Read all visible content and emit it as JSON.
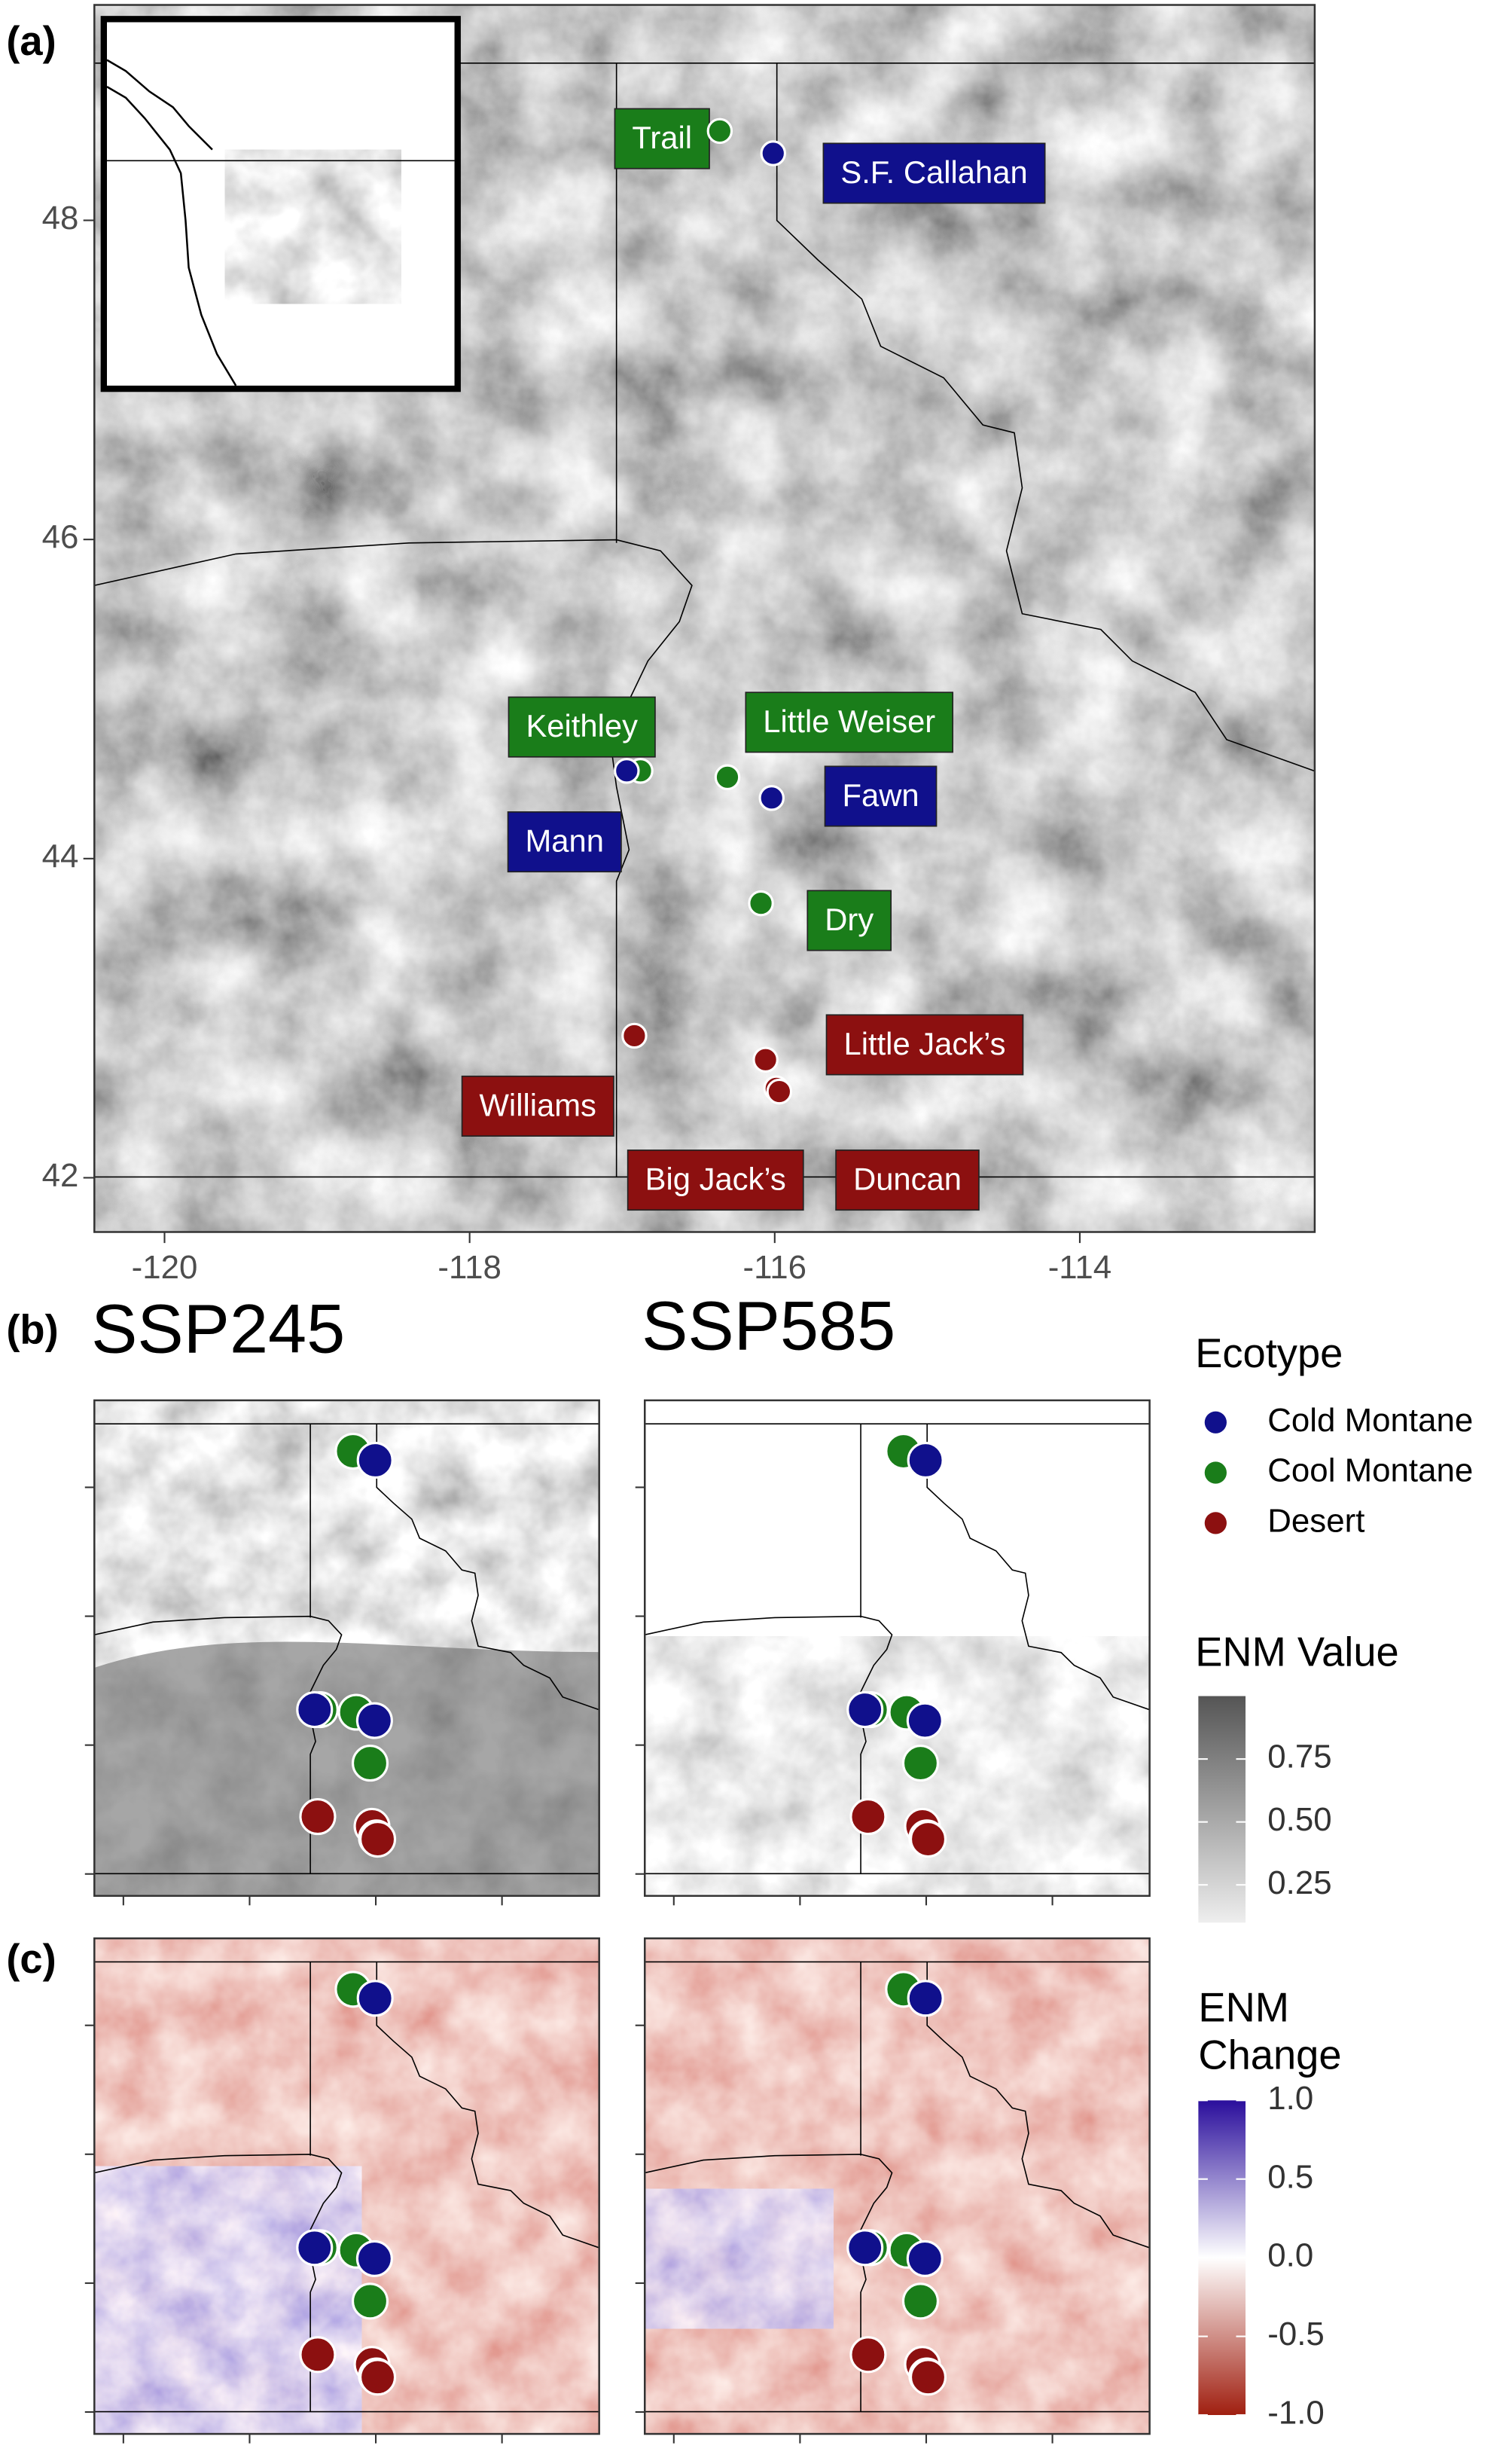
{
  "panel_labels": [
    "(a)",
    "(b)",
    "(c)"
  ],
  "map": {
    "xlim": [
      -120.46,
      -112.46
    ],
    "ylim": [
      41.66,
      49.35
    ],
    "xticks": [
      -120,
      -118,
      -116,
      -114
    ],
    "yticks": [
      42,
      44,
      46,
      48
    ]
  },
  "sites": [
    {
      "name": "Trail",
      "ecotype": "Cool Montane",
      "lon": -116.36,
      "lat": 48.56
    },
    {
      "name": "S.F. Callahan",
      "ecotype": "Cold Montane",
      "lon": -116.01,
      "lat": 48.42
    },
    {
      "name": "Keithley",
      "ecotype": "Cool Montane",
      "lon": -116.88,
      "lat": 44.55
    },
    {
      "name": "Mann",
      "ecotype": "Cold Montane",
      "lon": -116.97,
      "lat": 44.55
    },
    {
      "name": "Little Weiser",
      "ecotype": "Cool Montane",
      "lon": -116.31,
      "lat": 44.51
    },
    {
      "name": "Fawn",
      "ecotype": "Cold Montane",
      "lon": -116.02,
      "lat": 44.38
    },
    {
      "name": "Dry",
      "ecotype": "Cool Montane",
      "lon": -116.09,
      "lat": 43.72
    },
    {
      "name": "Williams",
      "ecotype": "Desert",
      "lon": -116.92,
      "lat": 42.89
    },
    {
      "name": "Little Jack’s",
      "ecotype": "Desert",
      "lon": -116.06,
      "lat": 42.74
    },
    {
      "name": "Big Jack’s",
      "ecotype": "Desert",
      "lon": -115.99,
      "lat": 42.56
    },
    {
      "name": "Duncan",
      "ecotype": "Desert",
      "lon": -115.97,
      "lat": 42.54
    }
  ],
  "scenarios": [
    "SSP245",
    "SSP585"
  ],
  "legend": {
    "title": "Ecotype",
    "items": [
      {
        "name": "Cold Montane",
        "color": "#10108c"
      },
      {
        "name": "Cool Montane",
        "color": "#1a7d1a"
      },
      {
        "name": "Desert",
        "color": "#8c1010"
      }
    ]
  },
  "enm_value": {
    "title": "ENM Value",
    "lim": [
      0.1,
      1.0
    ],
    "colors": [
      "#eeeeee",
      "#555555"
    ],
    "ticks": [
      {
        "value": 0.75,
        "label": "0.75"
      },
      {
        "value": 0.5,
        "label": "0.50"
      },
      {
        "value": 0.25,
        "label": "0.25"
      }
    ]
  },
  "enm_change": {
    "title": [
      "ENM",
      "Change"
    ],
    "lim": [
      -1,
      1
    ],
    "colors": [
      "#a01f10",
      "#ffffff",
      "#2a0e9c"
    ],
    "ticks": [
      {
        "value": 1,
        "label": "1.0"
      },
      {
        "value": 0.5,
        "label": "0.5"
      },
      {
        "value": 0,
        "label": "0.0"
      },
      {
        "value": -0.5,
        "label": "-0.5"
      },
      {
        "value": -1,
        "label": "-1.0"
      }
    ]
  }
}
